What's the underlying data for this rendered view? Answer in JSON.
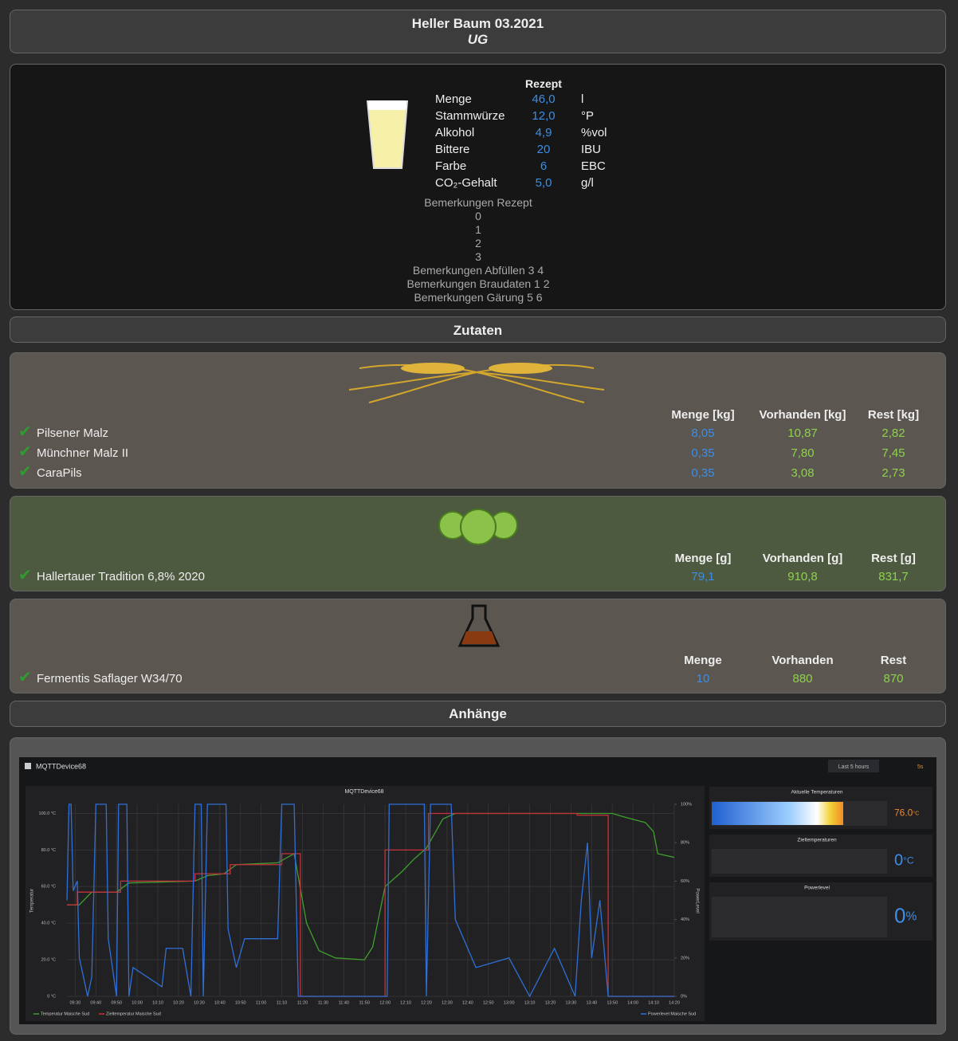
{
  "header": {
    "title": "Heller Baum 03.2021",
    "subtitle": "UG"
  },
  "recipe": {
    "title": "Rezept",
    "rows": [
      [
        "Menge",
        "46,0",
        "l"
      ],
      [
        "Stammwürze",
        "12,0",
        "°P"
      ],
      [
        "Alkohol",
        "4,9",
        "%vol"
      ],
      [
        "Bittere",
        "20",
        "IBU"
      ],
      [
        "Farbe",
        "6",
        "EBC"
      ],
      [
        "CO₂-Gehalt",
        "5,0",
        "g/l"
      ]
    ],
    "notes": [
      "Bemerkungen Rezept",
      "0",
      "1",
      "2",
      "3",
      "Bemerkungen Abfüllen 3 4",
      "Bemerkungen Braudaten 1 2",
      "Bemerkungen Gärung 5 6"
    ]
  },
  "sections": {
    "ingredients": "Zutaten",
    "attachments": "Anhänge"
  },
  "malts": {
    "columns": [
      "Menge [kg]",
      "Vorhanden [kg]",
      "Rest [kg]"
    ],
    "rows": [
      [
        "Pilsener Malz",
        "8,05",
        "10,87",
        "2,82"
      ],
      [
        "Münchner Malz II",
        "0,35",
        "7,80",
        "7,45"
      ],
      [
        "CaraPils",
        "0,35",
        "3,08",
        "2,73"
      ]
    ]
  },
  "hops": {
    "columns": [
      "Menge [g]",
      "Vorhanden [g]",
      "Rest [g]"
    ],
    "rows": [
      [
        "Hallertauer Tradition 6,8% 2020",
        "79,1",
        "910,8",
        "831,7"
      ]
    ]
  },
  "yeast": {
    "columns": [
      "Menge",
      "Vorhanden",
      "Rest"
    ],
    "rows": [
      [
        "Fermentis Saflager W34/70",
        "10",
        "880",
        "870"
      ]
    ]
  },
  "grafana": {
    "dashboard": "MQTTDevice68",
    "time_range": "Last 5 hours",
    "refresh": "5s",
    "chart_data": {
      "type": "line",
      "title": "MQTTDevice68",
      "ylabel": "Temperatur",
      "y2label": "PowerLevel",
      "xlim": [
        "09:26",
        "14:20"
      ],
      "xticks": [
        "09:30",
        "09:40",
        "09:50",
        "10:00",
        "10:10",
        "10:20",
        "10:30",
        "10:40",
        "10:50",
        "11:00",
        "11:10",
        "11:20",
        "11:30",
        "11:40",
        "11:50",
        "12:00",
        "12:10",
        "12:20",
        "12:30",
        "12:40",
        "12:50",
        "13:00",
        "13:10",
        "13:20",
        "13:30",
        "13:40",
        "13:50",
        "14:00",
        "14:10",
        "14:20"
      ],
      "ylim": [
        0,
        105
      ],
      "yticks": [
        {
          "value": 0,
          "label": "0 °C"
        },
        {
          "value": 20,
          "label": "20.0 °C"
        },
        {
          "value": 40,
          "label": "40.0 °C"
        },
        {
          "value": 60,
          "label": "60.0 °C"
        },
        {
          "value": 80,
          "label": "80.0 °C"
        },
        {
          "value": 100,
          "label": "100.0 °C"
        }
      ],
      "y2lim": [
        0,
        100
      ],
      "y2ticks": [
        {
          "value": 0,
          "label": "0%"
        },
        {
          "value": 20,
          "label": "20%"
        },
        {
          "value": 40,
          "label": "40%"
        },
        {
          "value": 60,
          "label": "60%"
        },
        {
          "value": 80,
          "label": "80%"
        },
        {
          "value": 100,
          "label": "100%"
        }
      ],
      "grid": true,
      "series": [
        {
          "name": "Temperatur Maische Sud",
          "color": "#3f9e2e",
          "x": [
            "09:26",
            "09:32",
            "09:38",
            "09:50",
            "09:56",
            "10:28",
            "10:34",
            "10:42",
            "10:48",
            "11:08",
            "11:16",
            "11:22",
            "11:28",
            "11:36",
            "11:50",
            "11:54",
            "12:00",
            "12:08",
            "12:14",
            "12:20",
            "12:28",
            "12:34",
            "13:50",
            "13:56",
            "14:06",
            "14:10",
            "14:12",
            "14:20"
          ],
          "values": [
            50,
            50,
            57,
            57,
            62,
            63,
            66,
            67,
            72,
            73,
            78,
            40,
            25,
            21,
            20,
            27,
            60,
            68,
            75,
            81,
            97,
            100,
            100,
            98,
            95,
            90,
            78,
            76
          ]
        },
        {
          "name": "Zieltemperatur Maische Sud",
          "color": "#c8303a",
          "x": [
            "09:26",
            "09:31",
            "09:31",
            "09:52",
            "09:52",
            "10:28",
            "10:28",
            "10:45",
            "10:45",
            "11:10",
            "11:10",
            "11:19",
            "11:19",
            "12:00",
            "12:00",
            "12:21",
            "12:21",
            "13:33",
            "13:33",
            "13:48",
            "13:48",
            "14:20"
          ],
          "values": [
            50,
            50,
            57,
            57,
            63,
            63,
            67,
            67,
            72,
            72,
            78,
            78,
            0,
            0,
            80,
            80,
            100,
            100,
            99,
            99,
            0,
            0
          ]
        },
        {
          "name": "Powerlevel Maische Sud",
          "color": "#2f6fd6",
          "axis": "y2",
          "x": [
            "09:26",
            "09:27",
            "09:28",
            "09:29",
            "09:31",
            "09:32",
            "09:36",
            "09:38",
            "09:40",
            "09:45",
            "09:46",
            "09:50",
            "09:51",
            "09:55",
            "09:56",
            "09:58",
            "10:12",
            "10:14",
            "10:22",
            "10:26",
            "10:28",
            "10:31",
            "10:32",
            "10:34",
            "10:43",
            "10:44",
            "10:48",
            "10:52",
            "11:08",
            "11:10",
            "11:16",
            "11:18",
            "12:01",
            "12:02",
            "12:19",
            "12:20",
            "12:22",
            "12:32",
            "12:34",
            "12:38",
            "12:44",
            "13:00",
            "13:10",
            "13:22",
            "13:32",
            "13:35",
            "13:38",
            "13:40",
            "13:44",
            "13:48",
            "14:20"
          ],
          "values": [
            50,
            100,
            100,
            55,
            60,
            20,
            0,
            10,
            100,
            100,
            30,
            0,
            100,
            100,
            0,
            15,
            5,
            25,
            25,
            0,
            100,
            100,
            0,
            100,
            100,
            35,
            15,
            30,
            30,
            100,
            100,
            0,
            0,
            100,
            100,
            0,
            100,
            100,
            40,
            30,
            15,
            20,
            0,
            25,
            0,
            50,
            80,
            20,
            50,
            0,
            0
          ]
        }
      ]
    },
    "stats": [
      {
        "title": "Aktuelle Temperaturen",
        "value": "76.0",
        "unit": "°C"
      },
      {
        "title": "Zieltemperaturen",
        "value": "0",
        "unit": "°C"
      },
      {
        "title": "Powerlevel",
        "value": "0",
        "unit": "%"
      }
    ]
  }
}
